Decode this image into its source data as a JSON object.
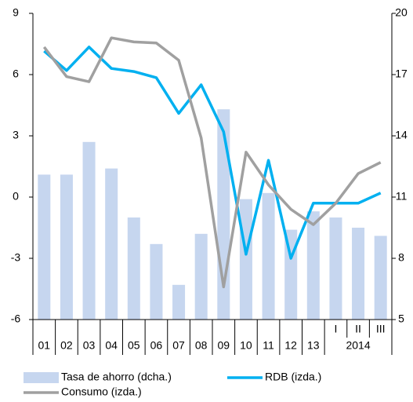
{
  "chart_data": {
    "type": "bar_line",
    "categories": [
      "01",
      "02",
      "03",
      "04",
      "05",
      "06",
      "07",
      "08",
      "09",
      "10",
      "11",
      "12",
      "13",
      "I",
      "II",
      "III"
    ],
    "group_label": "2014",
    "series": [
      {
        "name": "Tasa de ahorro (dcha.)",
        "type": "bar",
        "axis": "y2",
        "color": "#c6d6ef",
        "values": [
          12.1,
          12.1,
          13.7,
          12.4,
          10.0,
          8.7,
          6.7,
          9.2,
          15.3,
          10.9,
          11.2,
          9.4,
          10.3,
          10.0,
          9.5,
          9.1
        ]
      },
      {
        "name": "RDB (izda.)",
        "type": "line",
        "axis": "y",
        "color": "#00b0f0",
        "values": [
          7.15,
          6.2,
          7.35,
          6.3,
          6.15,
          5.85,
          4.1,
          5.5,
          3.2,
          -2.8,
          1.8,
          -3.0,
          -0.3,
          -0.3,
          -0.3,
          0.2
        ]
      },
      {
        "name": "Consumo (izda.)",
        "type": "line",
        "axis": "y",
        "color": "#a0a0a0",
        "values": [
          7.35,
          5.9,
          5.65,
          7.8,
          7.6,
          7.55,
          6.7,
          2.9,
          -4.4,
          2.2,
          0.6,
          -0.6,
          -1.35,
          -0.3,
          1.15,
          1.7
        ]
      }
    ],
    "ylim": [
      -6,
      9
    ],
    "yticks": [
      -6,
      -3,
      0,
      3,
      6,
      9
    ],
    "y2lim": [
      5,
      20
    ],
    "y2ticks": [
      5,
      8,
      11,
      14,
      17,
      20
    ]
  }
}
